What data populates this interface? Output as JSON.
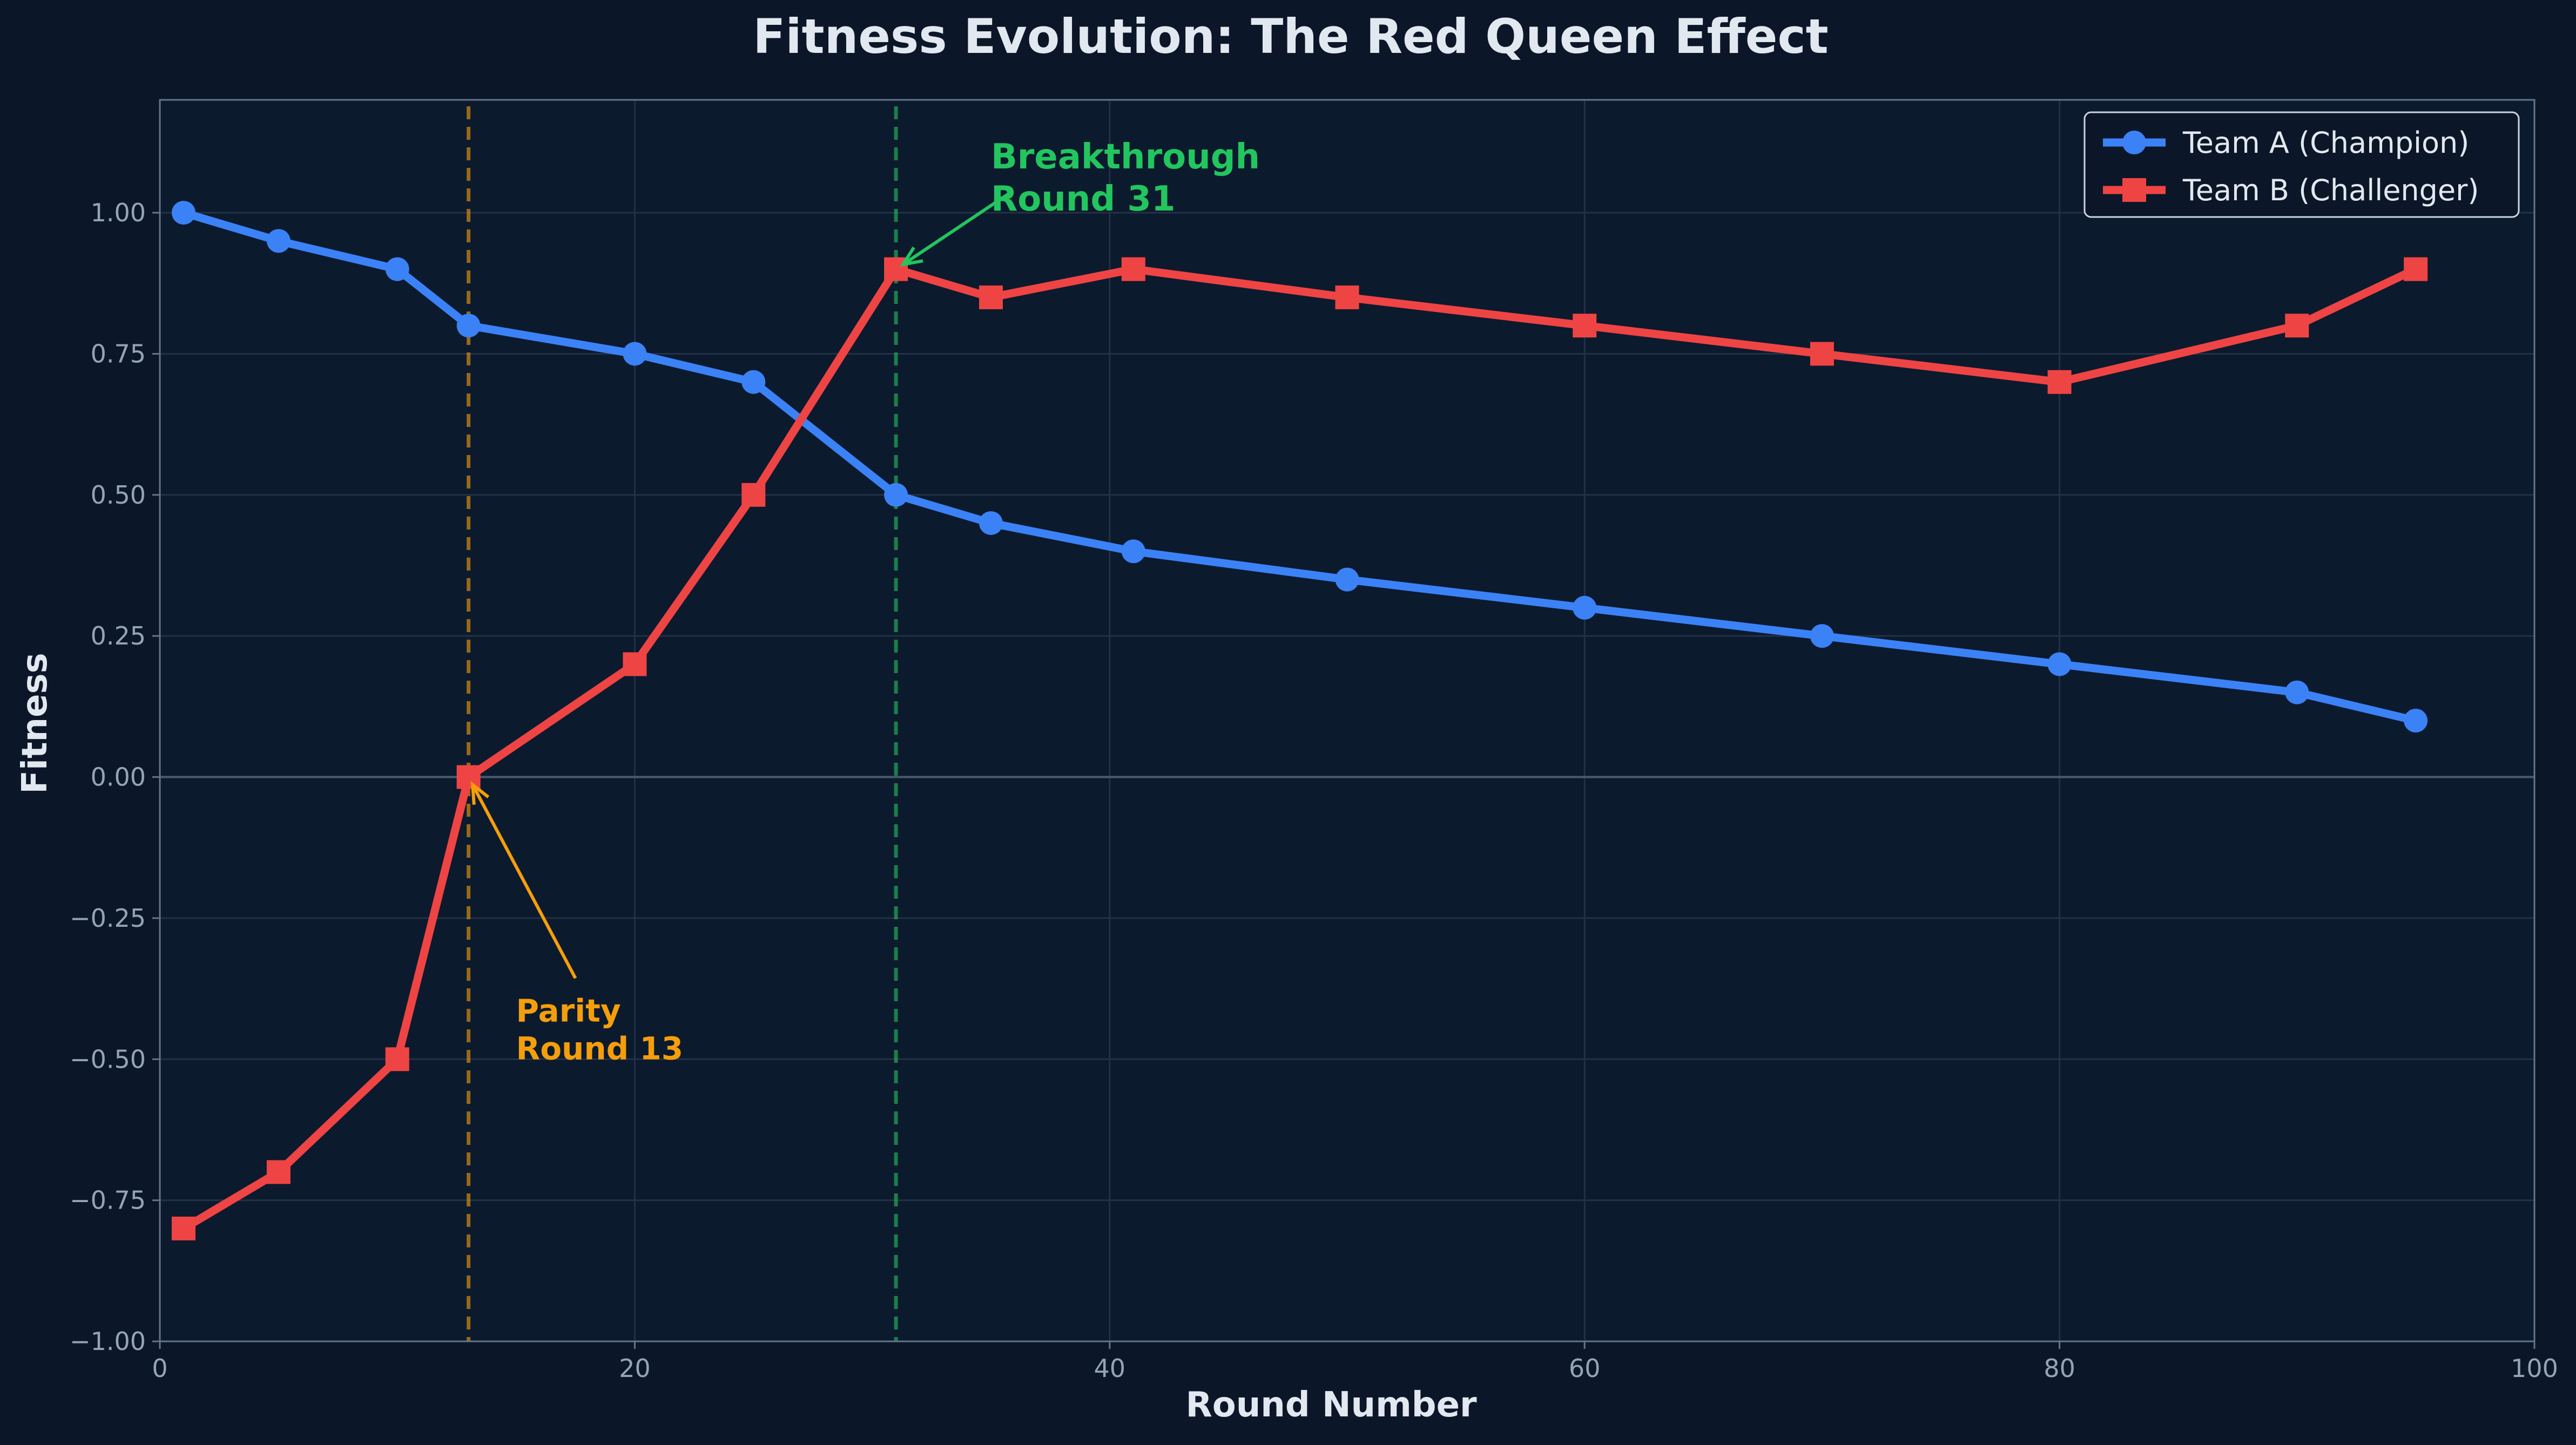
{
  "chart_data": {
    "type": "line",
    "title": "Fitness Evolution: The Red Queen Effect",
    "xlabel": "Round Number",
    "ylabel": "Fitness",
    "xlim": [
      0,
      100
    ],
    "ylim": [
      -1.0,
      1.2
    ],
    "xticks": [
      0,
      20,
      40,
      60,
      80,
      100
    ],
    "xtick_labels": [
      "0",
      "20",
      "40",
      "60",
      "80",
      "100"
    ],
    "yticks": [
      -1.0,
      -0.75,
      -0.5,
      -0.25,
      0.0,
      0.25,
      0.5,
      0.75,
      1.0
    ],
    "ytick_labels": [
      "−1.00",
      "−0.75",
      "−0.50",
      "−0.25",
      "0.00",
      "0.25",
      "0.50",
      "0.75",
      "1.00"
    ],
    "grid": true,
    "legend_position": "top-right",
    "series": [
      {
        "name": "Team A (Champion)",
        "color": "#3b82f6",
        "marker": "circle",
        "x": [
          1,
          5,
          10,
          13,
          20,
          25,
          31,
          35,
          41,
          50,
          60,
          70,
          80,
          90,
          95
        ],
        "y": [
          1.0,
          0.95,
          0.9,
          0.8,
          0.75,
          0.7,
          0.5,
          0.45,
          0.4,
          0.35,
          0.3,
          0.25,
          0.2,
          0.15,
          0.1
        ]
      },
      {
        "name": "Team B (Challenger)",
        "color": "#ef4444",
        "marker": "square",
        "x": [
          1,
          5,
          10,
          13,
          20,
          25,
          31,
          35,
          41,
          50,
          60,
          70,
          80,
          90,
          95
        ],
        "y": [
          -0.8,
          -0.7,
          -0.5,
          0.0,
          0.2,
          0.5,
          0.9,
          0.85,
          0.9,
          0.85,
          0.8,
          0.75,
          0.7,
          0.8,
          0.9
        ]
      }
    ],
    "vlines": [
      {
        "x": 13,
        "color": "#f59e0b"
      },
      {
        "x": 31,
        "color": "#22c55e"
      }
    ],
    "annotations": [
      {
        "lines": [
          "Breakthrough",
          "Round 31"
        ],
        "point_x": 31,
        "point_y": 0.9,
        "text_x": 35,
        "text_y": 1.0,
        "color": "#22c55e"
      },
      {
        "lines": [
          "Parity",
          "Round 13"
        ],
        "point_x": 13,
        "point_y": 0.0,
        "text_x": 15,
        "text_y": -0.5,
        "color": "#f59e0b"
      }
    ]
  },
  "colors": {
    "background": "#0b1728",
    "grid": "#223146",
    "axes": "#64748b",
    "text": "#e2e8f0",
    "ticks": "#94a3b8"
  }
}
